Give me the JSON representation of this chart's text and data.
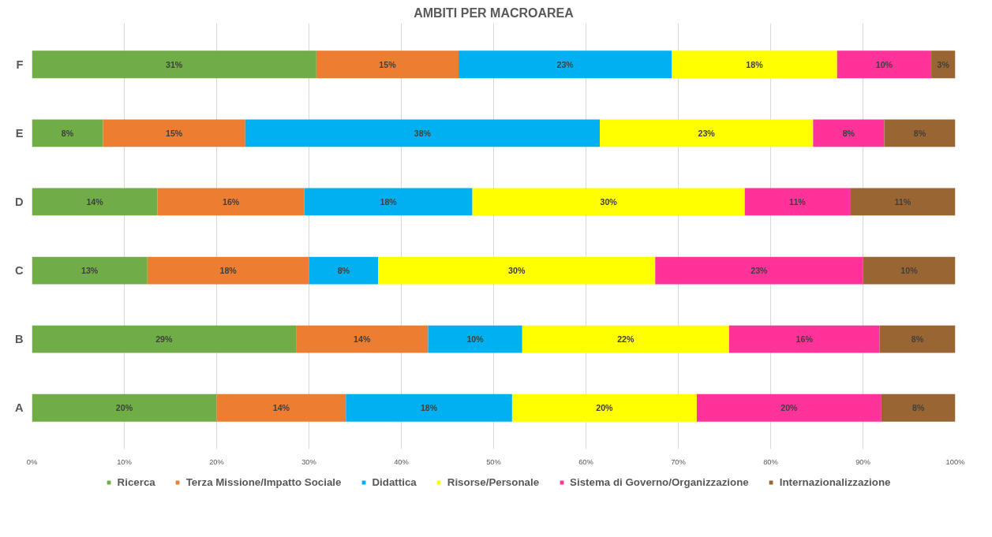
{
  "chart_data": {
    "type": "bar",
    "orientation": "horizontal",
    "stacked": true,
    "title": "AMBITI PER MACROAREA",
    "categories": [
      "F",
      "E",
      "D",
      "C",
      "B",
      "A"
    ],
    "series": [
      {
        "name": "Ricerca",
        "color": "#70ad47",
        "values": [
          30.8,
          7.7,
          13.6,
          12.5,
          28.6,
          20
        ],
        "value_labels": [
          "31%",
          "8%",
          "14%",
          "13%",
          "29%",
          "20%"
        ]
      },
      {
        "name": "Terza Missione/Impatto Sociale",
        "color": "#ed7d31",
        "values": [
          15.4,
          15.4,
          15.9,
          17.5,
          14.3,
          14
        ],
        "value_labels": [
          "15%",
          "15%",
          "16%",
          "18%",
          "14%",
          "14%"
        ]
      },
      {
        "name": "Didattica",
        "color": "#00b0f0",
        "values": [
          23.1,
          38.4,
          18.2,
          7.5,
          10.2,
          18
        ],
        "value_labels": [
          "23%",
          "38%",
          "18%",
          "8%",
          "10%",
          "18%"
        ]
      },
      {
        "name": "Risorse/Personale",
        "color": "#ffff00",
        "values": [
          17.9,
          23.1,
          29.5,
          30,
          22.4,
          20
        ],
        "value_labels": [
          "18%",
          "23%",
          "30%",
          "30%",
          "22%",
          "20%"
        ]
      },
      {
        "name": "Sistema di Governo/Organizzazione",
        "color": "#ff3399",
        "values": [
          10.2,
          7.7,
          11.4,
          22.5,
          16.3,
          20
        ],
        "value_labels": [
          "10%",
          "8%",
          "11%",
          "23%",
          "16%",
          "20%"
        ]
      },
      {
        "name": "Internazionalizzazione",
        "color": "#996633",
        "values": [
          2.6,
          7.7,
          11.4,
          10,
          8.2,
          8
        ],
        "value_labels": [
          "3%",
          "8%",
          "11%",
          "10%",
          "8%",
          "8%"
        ]
      }
    ],
    "xlim": [
      0,
      100
    ],
    "xticks": [
      {
        "value": 0,
        "label": "0%"
      },
      {
        "value": 10,
        "label": "10%"
      },
      {
        "value": 20,
        "label": "20%"
      },
      {
        "value": 30,
        "label": "30%"
      },
      {
        "value": 40,
        "label": "40%"
      },
      {
        "value": 50,
        "label": "50%"
      },
      {
        "value": 60,
        "label": "60%"
      },
      {
        "value": 70,
        "label": "70%"
      },
      {
        "value": 80,
        "label": "80%"
      },
      {
        "value": 90,
        "label": "90%"
      },
      {
        "value": 100,
        "label": "100%"
      }
    ],
    "grid": "x",
    "legend": "bottom"
  }
}
